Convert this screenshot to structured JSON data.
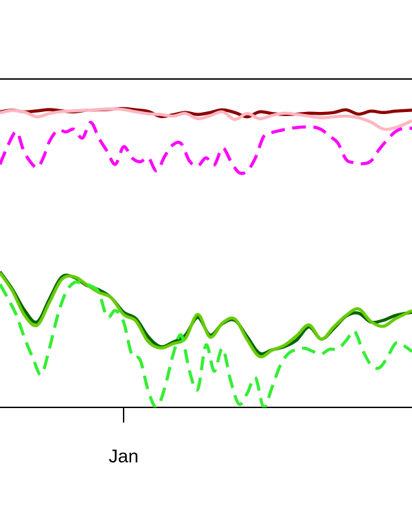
{
  "chart_data": {
    "type": "line",
    "title": "",
    "xlabel": "",
    "ylabel": "",
    "x_range": [
      0,
      100
    ],
    "y_range": [
      0,
      100
    ],
    "grid": false,
    "legend": "none",
    "x_ticks": [
      {
        "x": 30,
        "label": "Jan"
      }
    ],
    "series": [
      {
        "color": "#8b0000",
        "dash": "solid",
        "width": 4.5,
        "x": [
          0,
          3,
          6,
          9,
          12,
          15,
          18,
          21,
          24,
          27,
          30,
          33,
          36,
          39,
          42,
          45,
          48,
          51,
          54,
          57,
          60,
          63,
          66,
          69,
          72,
          75,
          78,
          81,
          84,
          87,
          90,
          93,
          96,
          100
        ],
        "y": [
          90,
          90.5,
          90,
          90.3,
          90.7,
          90.3,
          90,
          90.5,
          90.6,
          90.8,
          91,
          90.6,
          90.1,
          88.6,
          89.1,
          89.8,
          89.2,
          89.8,
          90.6,
          89.8,
          88.5,
          90,
          89.5,
          89.2,
          89.3,
          89.6,
          89.5,
          89.8,
          90.6,
          89.3,
          90.2,
          89.8,
          90.2,
          90.5
        ]
      },
      {
        "color": "#ffb6c1",
        "dash": "solid",
        "width": 4.5,
        "x": [
          0,
          3,
          6,
          9,
          12,
          15,
          18,
          21,
          24,
          27,
          30,
          33,
          36,
          39,
          42,
          45,
          48,
          51,
          54,
          57,
          60,
          63,
          66,
          69,
          72,
          75,
          78,
          81,
          84,
          87,
          90,
          93,
          96,
          100
        ],
        "y": [
          89.7,
          90.4,
          89.9,
          88.5,
          89.5,
          90.1,
          90.3,
          90.5,
          90.7,
          90.9,
          90.7,
          90,
          89.4,
          89.2,
          88.7,
          89.5,
          87.9,
          88.8,
          90,
          87.7,
          89.5,
          87.9,
          88.9,
          89.6,
          89.2,
          88.7,
          88.2,
          88.5,
          88.7,
          88.2,
          86.9,
          84.8,
          85.2,
          87.3
        ]
      },
      {
        "color": "#ff00ff",
        "dash": "dashed",
        "width": 4.5,
        "x": [
          0,
          2,
          4,
          5.5,
          7,
          9,
          10.5,
          12,
          14,
          16,
          18,
          20,
          22,
          24,
          26,
          28,
          30,
          32,
          34,
          36,
          38,
          40,
          42,
          44,
          46,
          48,
          50,
          52,
          54,
          56,
          58,
          60,
          62,
          64,
          66,
          68,
          70,
          72,
          74,
          76,
          78,
          80,
          82,
          84,
          86,
          88,
          90,
          92,
          94,
          96,
          98,
          100
        ],
        "y": [
          74,
          80,
          84,
          79,
          75.4,
          73,
          76,
          81,
          84.4,
          83.9,
          84.7,
          82,
          86.8,
          82,
          78,
          74,
          79.4,
          76,
          74.8,
          76,
          72,
          76.5,
          80,
          80.3,
          75,
          73.5,
          76,
          73.8,
          79,
          75,
          71.5,
          72,
          76,
          82.5,
          83.7,
          84.3,
          84.9,
          85.2,
          85.4,
          85.4,
          84.6,
          82.6,
          80.5,
          75.5,
          74.5,
          74.2,
          75,
          78.5,
          81.5,
          84,
          85,
          85
        ]
      },
      {
        "color": "#006400",
        "dash": "solid",
        "width": 4.5,
        "x": [
          0,
          3,
          6,
          9,
          12,
          15,
          18,
          21,
          24,
          27,
          30,
          33,
          36,
          39,
          42,
          45,
          48,
          51,
          54,
          57,
          60,
          63,
          66,
          69,
          72,
          75,
          78,
          81,
          84,
          87,
          90,
          93,
          96,
          100
        ],
        "y": [
          41.3,
          36,
          29.5,
          26,
          33,
          39.7,
          39.6,
          37.2,
          35.8,
          33.4,
          29,
          27,
          21.5,
          18.5,
          19.9,
          22,
          27.4,
          22,
          25.5,
          26.5,
          21.5,
          16.5,
          17.5,
          18.5,
          20.5,
          24.5,
          20.8,
          24,
          27.8,
          28.7,
          26,
          26.5,
          28,
          29
        ]
      },
      {
        "color": "#66cc00",
        "dash": "solid",
        "width": 4.5,
        "x": [
          0,
          3,
          6,
          9,
          12,
          15,
          18,
          21,
          24,
          27,
          30,
          33,
          36,
          39,
          42,
          45,
          48,
          51,
          54,
          57,
          60,
          63,
          66,
          69,
          72,
          75,
          78,
          81,
          84,
          87,
          90,
          93,
          96,
          100
        ],
        "y": [
          41,
          35.5,
          28,
          25,
          32,
          39,
          39.8,
          37.4,
          35,
          33.4,
          28.3,
          26.3,
          20,
          18.1,
          19.4,
          21,
          28.3,
          21.4,
          25.7,
          26.9,
          20.6,
          15.5,
          17.4,
          18.9,
          21.8,
          25.1,
          20.8,
          24.5,
          28,
          30,
          26.2,
          24.7,
          27,
          29.5
        ]
      },
      {
        "color": "#33ee33",
        "dash": "dashed",
        "width": 4.5,
        "x": [
          0,
          2,
          4,
          6,
          8,
          10,
          12,
          14,
          16,
          18,
          20,
          22,
          24,
          26,
          28,
          30,
          32,
          34,
          36,
          38,
          40,
          42,
          44,
          46,
          48,
          50,
          52,
          54,
          56,
          58,
          60,
          62,
          64,
          66,
          68,
          70,
          72,
          74,
          76,
          78,
          80,
          82,
          84,
          86,
          88,
          90,
          92,
          94,
          96,
          98,
          100
        ],
        "y": [
          37.5,
          33,
          28,
          21,
          15,
          10,
          18,
          28,
          35,
          38,
          37.8,
          37,
          35,
          27.5,
          29.5,
          26,
          16,
          14.5,
          5,
          0,
          6,
          16,
          22,
          11,
          5.5,
          19,
          11,
          18,
          8,
          1,
          4.3,
          9,
          0,
          6,
          12.7,
          16.4,
          17.6,
          18,
          17,
          16.3,
          17.7,
          17.8,
          20.3,
          23.2,
          17.5,
          13,
          12,
          15.2,
          19.5,
          18.8,
          17
        ]
      }
    ]
  }
}
